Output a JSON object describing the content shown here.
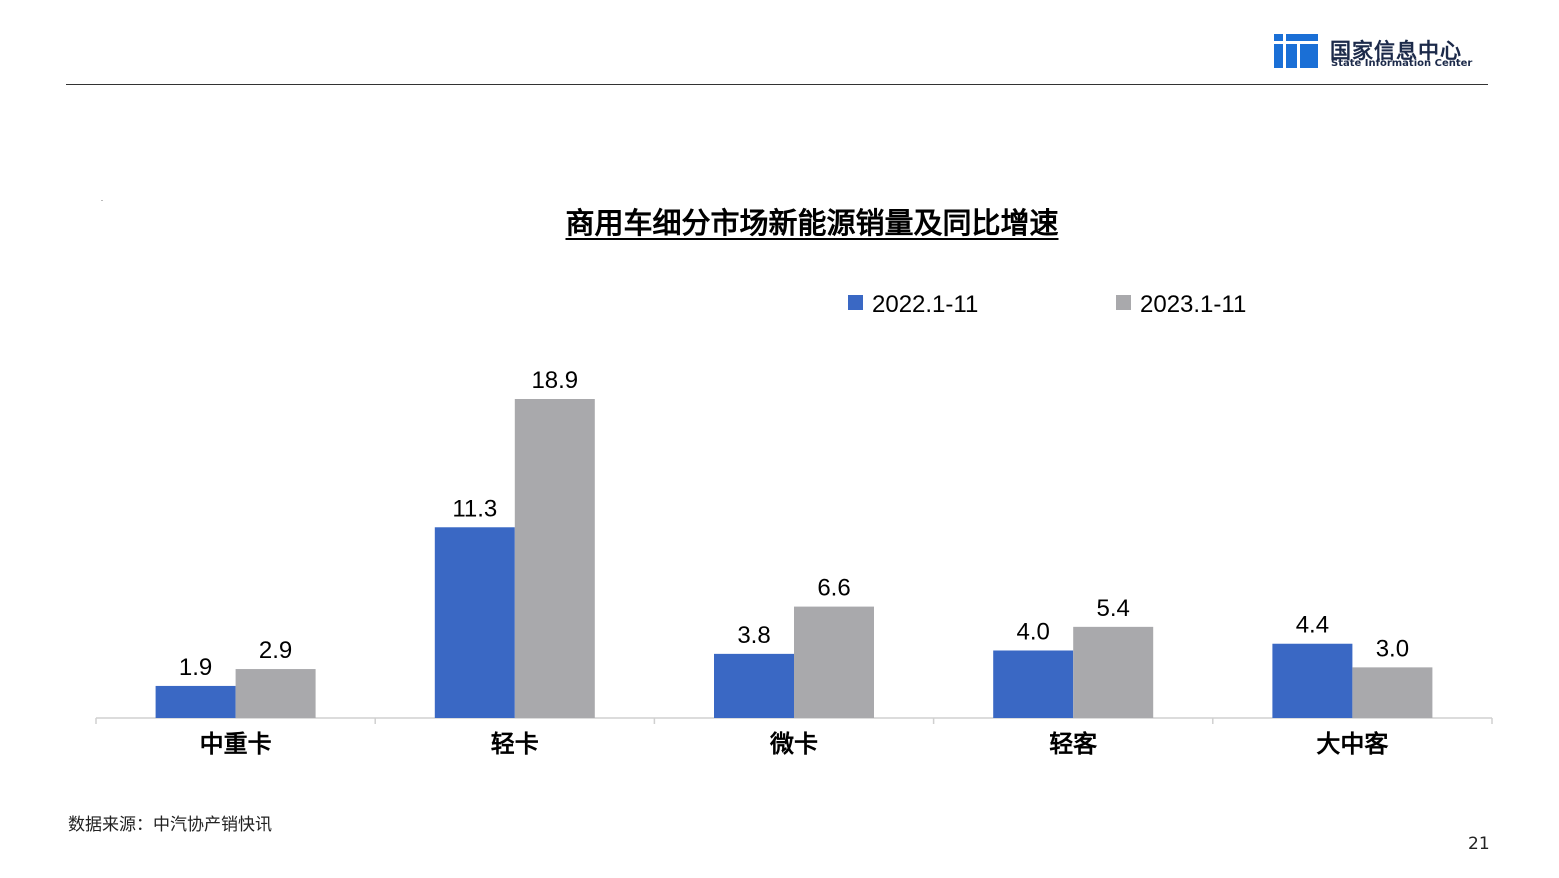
{
  "header": {
    "org_name_cn": "国家信息中心",
    "org_name_en": "State Information Center",
    "logo_color": "#1a6fd6"
  },
  "chart_data": {
    "type": "bar",
    "title": "商用车细分市场新能源销量及同比增速",
    "categories": [
      "中重卡",
      "轻卡",
      "微卡",
      "轻客",
      "大中客"
    ],
    "series": [
      {
        "name": "2022.1-11",
        "color": "#3a68c4",
        "values": [
          1.9,
          11.3,
          3.8,
          4.0,
          4.4
        ]
      },
      {
        "name": "2023.1-11",
        "color": "#a9a9ac",
        "values": [
          2.9,
          18.9,
          6.6,
          5.4,
          3.0
        ]
      }
    ],
    "data_labels": true,
    "xlabel": "",
    "ylabel": "",
    "y_axis_visible": false,
    "legend_position": "top-right",
    "grid": false
  },
  "footer": {
    "source": "数据来源：中汽协产销快讯",
    "page_number": "21"
  }
}
